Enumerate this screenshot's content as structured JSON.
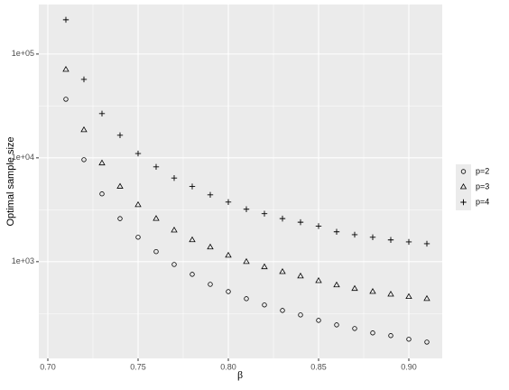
{
  "chart_data": {
    "type": "scatter",
    "y_label": "Optimal sample size",
    "x_label": "β",
    "x": [
      0.71,
      0.72,
      0.73,
      0.74,
      0.75,
      0.76,
      0.77,
      0.78,
      0.79,
      0.8,
      0.81,
      0.82,
      0.83,
      0.84,
      0.85,
      0.86,
      0.87,
      0.88,
      0.89,
      0.9,
      0.91
    ],
    "series": [
      {
        "name": "p=2",
        "shape": "circle",
        "color": "#000000",
        "values": [
          36700,
          9600,
          4500,
          2600,
          1720,
          1250,
          940,
          755,
          605,
          515,
          440,
          383,
          339,
          307,
          272,
          246,
          227,
          206,
          194,
          179,
          168
        ]
      },
      {
        "name": "p=3",
        "shape": "triangle",
        "color": "#000000",
        "values": [
          71000,
          18600,
          8900,
          5300,
          3530,
          2600,
          2010,
          1620,
          1380,
          1150,
          1000,
          890,
          800,
          725,
          655,
          595,
          550,
          515,
          485,
          460,
          440
        ]
      },
      {
        "name": "p=4",
        "shape": "plus",
        "color": "#000000",
        "values": [
          214000,
          57000,
          26700,
          16500,
          11000,
          8200,
          6400,
          5300,
          4400,
          3750,
          3200,
          2900,
          2600,
          2400,
          2200,
          1940,
          1820,
          1720,
          1620,
          1550,
          1490
        ]
      }
    ],
    "xlim": [
      0.695,
      0.9185
    ],
    "xticks": [
      {
        "value": 0.7,
        "label": "0.70"
      },
      0.75,
      {
        "value": 0.8,
        "label": "0.80"
      },
      0.85,
      {
        "value": 0.9,
        "label": "0.90"
      }
    ],
    "ylim": [
      117,
      300000
    ],
    "yticks": [
      {
        "value": 1000,
        "label": "1e+03"
      },
      {
        "value": 10000,
        "label": "1e+04"
      },
      {
        "value": 100000,
        "label": "1e+05"
      }
    ],
    "log_y": true,
    "grid": true,
    "legend": "right"
  }
}
